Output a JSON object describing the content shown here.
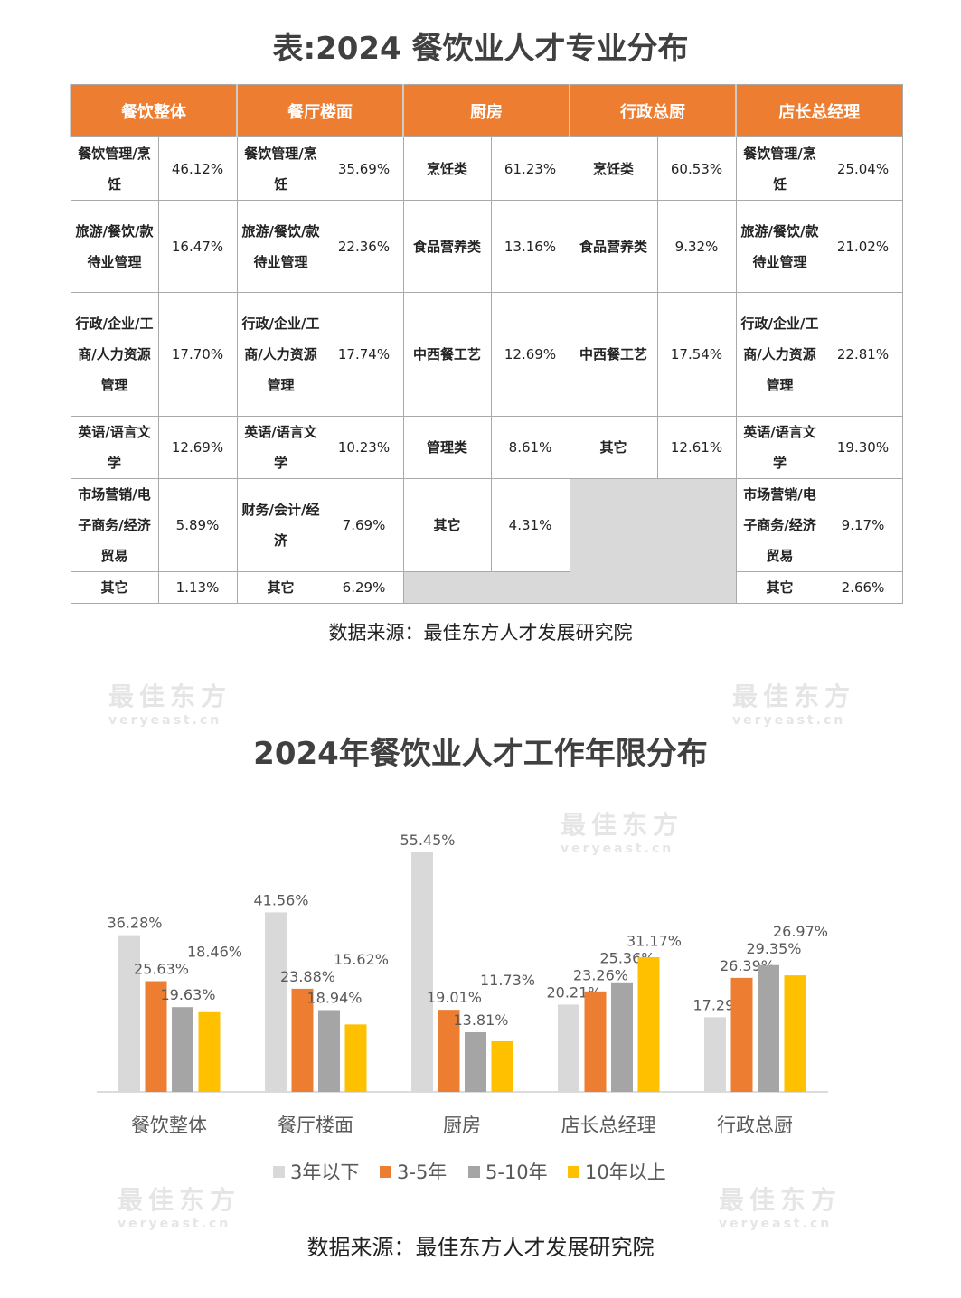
{
  "table_title": "表:2024 餐饮业人才专业分布",
  "table": {
    "headers": [
      "餐饮整体",
      "餐厅楼面",
      "厨房",
      "行政总厨",
      "店长总经理"
    ],
    "rows": [
      [
        [
          "餐饮管理/烹饪",
          "46.12%"
        ],
        [
          "餐饮管理/烹饪",
          "35.69%"
        ],
        [
          "烹饪类",
          "61.23%"
        ],
        [
          "烹饪类",
          "60.53%"
        ],
        [
          "餐饮管理/烹饪",
          "25.04%"
        ]
      ],
      [
        [
          "旅游/餐饮/款待业管理",
          "16.47%"
        ],
        [
          "旅游/餐饮/款待业管理",
          "22.36%"
        ],
        [
          "食品营养类",
          "13.16%"
        ],
        [
          "食品营养类",
          "9.32%"
        ],
        [
          "旅游/餐饮/款待业管理",
          "21.02%"
        ]
      ],
      [
        [
          "行政/企业/工商/人力资源管理",
          "17.70%"
        ],
        [
          "行政/企业/工商/人力资源管理",
          "17.74%"
        ],
        [
          "中西餐工艺",
          "12.69%"
        ],
        [
          "中西餐工艺",
          "17.54%"
        ],
        [
          "行政/企业/工商/人力资源管理",
          "22.81%"
        ]
      ],
      [
        [
          "英语/语言文学",
          "12.69%"
        ],
        [
          "英语/语言文学",
          "10.23%"
        ],
        [
          "管理类",
          "8.61%"
        ],
        [
          "其它",
          "12.61%"
        ],
        [
          "英语/语言文学",
          "19.30%"
        ]
      ],
      [
        [
          "市场营销/电子商务/经济贸易",
          "5.89%"
        ],
        [
          "财务/会计/经济",
          "7.69%"
        ],
        [
          "其它",
          "4.31%"
        ],
        null,
        [
          "市场营销/电子商务/经济贸易",
          "9.17%"
        ]
      ],
      [
        [
          "其它",
          "1.13%"
        ],
        [
          "其它",
          "6.29%"
        ],
        null,
        null,
        [
          "其它",
          "2.66%"
        ]
      ]
    ]
  },
  "table_source": "数据来源：最佳东方人才发展研究院",
  "watermark": {
    "cn": "最佳东方",
    "en": "veryeast.cn"
  },
  "chart_data": {
    "type": "bar",
    "title": "2024年餐饮业人才工作年限分布",
    "categories": [
      "餐饮整体",
      "餐厅楼面",
      "厨房",
      "店长总经理",
      "行政总厨"
    ],
    "series": [
      {
        "name": "3年以下",
        "color": "#D9D9D9",
        "values": [
          36.28,
          41.56,
          55.45,
          20.21,
          17.29
        ]
      },
      {
        "name": "3-5年",
        "color": "#ED7D31",
        "values": [
          25.63,
          23.88,
          19.01,
          23.26,
          26.39
        ]
      },
      {
        "name": "5-10年",
        "color": "#A5A5A5",
        "values": [
          19.63,
          18.94,
          13.81,
          25.36,
          29.35
        ]
      },
      {
        "name": "10年以上",
        "color": "#FFC000",
        "values": [
          18.46,
          15.62,
          11.73,
          31.17,
          26.97
        ]
      }
    ],
    "ylim": [
      0,
      60
    ],
    "legend": "bottom",
    "grid": false,
    "source": "数据来源：最佳东方人才发展研究院"
  }
}
